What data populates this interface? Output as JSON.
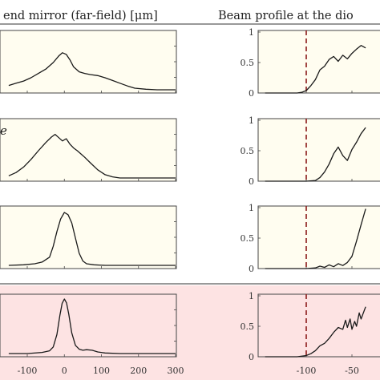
{
  "chart_data": [
    {
      "type": "line",
      "title": "end mirror (far-field) [μm]",
      "xlim": [
        -150,
        300
      ],
      "x_ticks": [
        -100,
        0,
        100,
        200,
        300
      ],
      "ylabel": "",
      "grid": false,
      "rows": [
        {
          "background": "#fffdf0",
          "series": [
            {
              "x": [
                -150,
                -130,
                -110,
                -90,
                -70,
                -50,
                -30,
                -15,
                -5,
                5,
                15,
                25,
                40,
                55,
                70,
                90,
                110,
                130,
                150,
                170,
                190,
                220,
                250,
                280,
                300
              ],
              "y": [
                0.08,
                0.12,
                0.16,
                0.22,
                0.3,
                0.38,
                0.5,
                0.62,
                0.68,
                0.65,
                0.55,
                0.42,
                0.33,
                0.3,
                0.28,
                0.26,
                0.22,
                0.17,
                0.12,
                0.07,
                0.03,
                0.01,
                0.0,
                0.0,
                0.0
              ]
            }
          ]
        },
        {
          "background": "#fffdf0",
          "annotation": "e",
          "series": [
            {
              "x": [
                -150,
                -130,
                -110,
                -90,
                -70,
                -50,
                -35,
                -25,
                -15,
                -5,
                5,
                15,
                25,
                35,
                45,
                55,
                70,
                90,
                110,
                130,
                150,
                180,
                220,
                260,
                300
              ],
              "y": [
                0.04,
                0.1,
                0.2,
                0.34,
                0.5,
                0.65,
                0.75,
                0.8,
                0.74,
                0.68,
                0.72,
                0.62,
                0.55,
                0.5,
                0.44,
                0.38,
                0.28,
                0.15,
                0.06,
                0.02,
                0.0,
                0.0,
                0.0,
                0.0,
                0.0
              ]
            }
          ]
        },
        {
          "background": "#fffdf0",
          "series": [
            {
              "x": [
                -150,
                -110,
                -80,
                -60,
                -40,
                -30,
                -20,
                -10,
                0,
                10,
                20,
                30,
                40,
                50,
                60,
                80,
                110,
                150,
                200,
                250,
                300
              ],
              "y": [
                0.0,
                0.01,
                0.03,
                0.06,
                0.15,
                0.35,
                0.62,
                0.85,
                0.97,
                0.93,
                0.78,
                0.5,
                0.22,
                0.08,
                0.03,
                0.01,
                0.0,
                0.0,
                0.0,
                0.0,
                0.0
              ]
            }
          ]
        },
        {
          "background": "#fde3e3",
          "series": [
            {
              "x": [
                -150,
                -100,
                -60,
                -40,
                -30,
                -20,
                -12,
                -6,
                0,
                6,
                12,
                20,
                30,
                40,
                50,
                60,
                75,
                90,
                110,
                150,
                200,
                250,
                300
              ],
              "y": [
                0.0,
                0.0,
                0.02,
                0.05,
                0.12,
                0.35,
                0.7,
                0.92,
                1.0,
                0.93,
                0.72,
                0.38,
                0.15,
                0.08,
                0.06,
                0.07,
                0.06,
                0.03,
                0.01,
                0.0,
                0.0,
                0.0,
                0.0
              ]
            }
          ]
        }
      ]
    },
    {
      "type": "line",
      "title": "Beam profile at the dio",
      "xlim": [
        -145,
        -35
      ],
      "x_ticks": [
        -100,
        -50
      ],
      "ylim": [
        0,
        1
      ],
      "y_ticks": [
        "0",
        "0.5",
        "1"
      ],
      "grid": false,
      "marker_line": {
        "x": -100,
        "color": "#8b1a1a",
        "style": "dashed"
      },
      "rows": [
        {
          "background": "#fffdf0",
          "series": [
            {
              "x": [
                -145,
                -110,
                -105,
                -100,
                -95,
                -90,
                -85,
                -80,
                -75,
                -70,
                -65,
                -60,
                -55,
                -50,
                -45,
                -40,
                -35
              ],
              "y": [
                0.0,
                0.0,
                0.01,
                0.04,
                0.12,
                0.22,
                0.38,
                0.44,
                0.55,
                0.6,
                0.52,
                0.62,
                0.56,
                0.65,
                0.72,
                0.78,
                0.74
              ]
            }
          ]
        },
        {
          "background": "#fffdf0",
          "series": [
            {
              "x": [
                -145,
                -100,
                -90,
                -85,
                -80,
                -75,
                -70,
                -65,
                -60,
                -55,
                -50,
                -45,
                -40,
                -35
              ],
              "y": [
                0.0,
                0.0,
                0.01,
                0.06,
                0.15,
                0.28,
                0.45,
                0.56,
                0.42,
                0.34,
                0.52,
                0.64,
                0.78,
                0.88
              ]
            }
          ]
        },
        {
          "background": "#fffdf0",
          "series": [
            {
              "x": [
                -145,
                -100,
                -90,
                -85,
                -80,
                -75,
                -70,
                -65,
                -60,
                -55,
                -50,
                -45,
                -40,
                -35
              ],
              "y": [
                0.0,
                0.0,
                0.01,
                0.04,
                0.02,
                0.06,
                0.03,
                0.08,
                0.05,
                0.1,
                0.2,
                0.45,
                0.72,
                0.98
              ]
            }
          ]
        },
        {
          "background": "#fde3e3",
          "series": [
            {
              "x": [
                -145,
                -110,
                -100,
                -95,
                -90,
                -85,
                -80,
                -75,
                -70,
                -65,
                -60,
                -57,
                -55,
                -52,
                -50,
                -47,
                -45,
                -42,
                -40,
                -35
              ],
              "y": [
                0.0,
                0.0,
                0.02,
                0.05,
                0.1,
                0.18,
                0.22,
                0.3,
                0.4,
                0.48,
                0.45,
                0.6,
                0.48,
                0.62,
                0.45,
                0.58,
                0.5,
                0.72,
                0.62,
                0.82
              ]
            }
          ]
        }
      ]
    }
  ]
}
